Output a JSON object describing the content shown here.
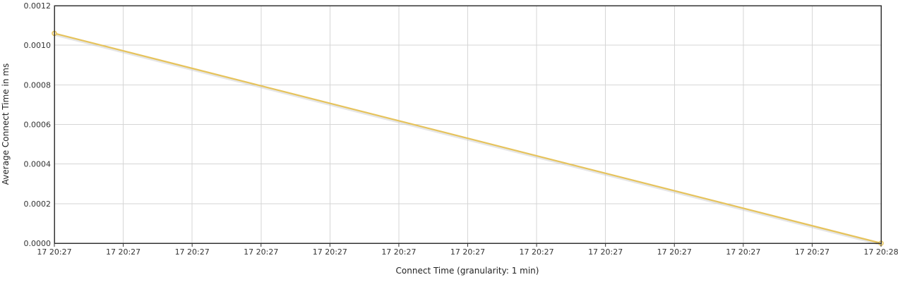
{
  "chart_data": {
    "type": "line",
    "xlabel": "Connect Time (granularity: 1 min)",
    "ylabel": "Average Connect Time in ms",
    "x_tick_labels": [
      "17 20:27",
      "17 20:27",
      "17 20:27",
      "17 20:27",
      "17 20:27",
      "17 20:27",
      "17 20:27",
      "17 20:27",
      "17 20:27",
      "17 20:27",
      "17 20:27",
      "17 20:27",
      "17 20:28"
    ],
    "y_tick_labels": [
      "0.0000",
      "0.0002",
      "0.0004",
      "0.0006",
      "0.0008",
      "0.0010",
      "0.0012"
    ],
    "ylim": [
      0,
      0.0012
    ],
    "xlim": [
      0,
      12
    ],
    "grid": true,
    "legend": "none",
    "series": [
      {
        "color": "#e6c35c",
        "x": [
          0,
          12
        ],
        "y": [
          0.00106,
          0.0
        ]
      }
    ]
  }
}
